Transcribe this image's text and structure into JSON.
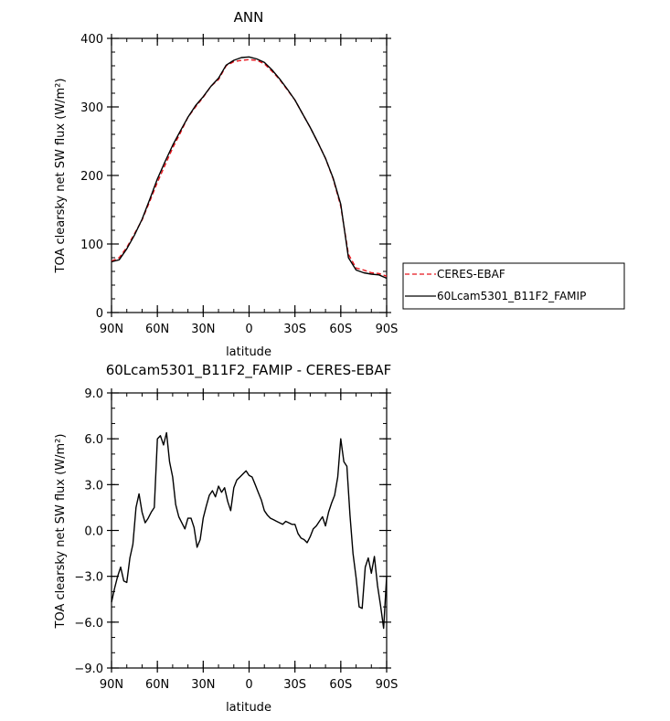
{
  "chart_data": [
    {
      "type": "line",
      "title": "ANN",
      "xlabel": "latitude",
      "ylabel": "TOA clearsky net SW flux (W/m²)",
      "xlim": [
        90,
        -90
      ],
      "ylim": [
        0,
        400
      ],
      "x_ticks": [
        {
          "value": 90,
          "label": "90N"
        },
        {
          "value": 60,
          "label": "60N"
        },
        {
          "value": 30,
          "label": "30N"
        },
        {
          "value": 0,
          "label": "0"
        },
        {
          "value": -30,
          "label": "30S"
        },
        {
          "value": -60,
          "label": "60S"
        },
        {
          "value": -90,
          "label": "90S"
        }
      ],
      "y_ticks": [
        {
          "value": 0,
          "label": "0"
        },
        {
          "value": 100,
          "label": "100"
        },
        {
          "value": 200,
          "label": "200"
        },
        {
          "value": 300,
          "label": "300"
        },
        {
          "value": 400,
          "label": "400"
        }
      ],
      "grid": false,
      "legend": "right",
      "series": [
        {
          "name": "CERES-EBAF",
          "color": "#e8141c",
          "dash": true,
          "x": [
            90,
            85,
            80,
            75,
            70,
            65,
            60,
            55,
            50,
            45,
            40,
            35,
            30,
            25,
            20,
            15,
            10,
            5,
            0,
            -5,
            -10,
            -15,
            -20,
            -25,
            -30,
            -35,
            -40,
            -45,
            -50,
            -55,
            -60,
            -65,
            -70,
            -75,
            -80,
            -85,
            -90
          ],
          "y": [
            75,
            80,
            95,
            115,
            135,
            162,
            190,
            215,
            240,
            262,
            285,
            300,
            314,
            330,
            340,
            360,
            366,
            368,
            369,
            368,
            363,
            352,
            340,
            325,
            310,
            290,
            270,
            248,
            225,
            195,
            155,
            85,
            65,
            62,
            58,
            57,
            53
          ]
        },
        {
          "name": "60Lcam5301_B11F2_FAMIP",
          "color": "#000000",
          "dash": false,
          "x": [
            90,
            85,
            80,
            75,
            70,
            65,
            60,
            55,
            50,
            45,
            40,
            35,
            30,
            25,
            20,
            15,
            10,
            5,
            0,
            -5,
            -10,
            -15,
            -20,
            -25,
            -30,
            -35,
            -40,
            -45,
            -50,
            -55,
            -60,
            -65,
            -70,
            -75,
            -80,
            -85,
            -90
          ],
          "y": [
            74,
            77,
            93,
            113,
            136,
            165,
            195,
            220,
            244,
            265,
            285,
            302,
            315,
            330,
            342,
            361,
            368,
            372,
            373,
            370,
            365,
            354,
            341,
            326,
            310,
            290,
            270,
            248,
            225,
            196,
            158,
            80,
            62,
            58,
            56,
            55,
            50
          ]
        }
      ]
    },
    {
      "type": "line",
      "title": "60Lcam5301_B11F2_FAMIP - CERES-EBAF",
      "xlabel": "latitude",
      "ylabel": "TOA clearsky net SW flux (W/m²)",
      "xlim": [
        90,
        -90
      ],
      "ylim": [
        -9,
        9
      ],
      "x_ticks": [
        {
          "value": 90,
          "label": "90N"
        },
        {
          "value": 60,
          "label": "60N"
        },
        {
          "value": 30,
          "label": "30N"
        },
        {
          "value": 0,
          "label": "0"
        },
        {
          "value": -30,
          "label": "30S"
        },
        {
          "value": -60,
          "label": "60S"
        },
        {
          "value": -90,
          "label": "90S"
        }
      ],
      "y_ticks": [
        {
          "value": -9,
          "label": "−9.0"
        },
        {
          "value": -6,
          "label": "−6.0"
        },
        {
          "value": -3,
          "label": "−3.0"
        },
        {
          "value": 0,
          "label": "0.0"
        },
        {
          "value": 3,
          "label": "3.0"
        },
        {
          "value": 6,
          "label": "6.0"
        },
        {
          "value": 9,
          "label": "9.0"
        }
      ],
      "grid": false,
      "series": [
        {
          "color": "#000000",
          "dash": false,
          "x": [
            90,
            88,
            86,
            84,
            82,
            80,
            78,
            76,
            74,
            72,
            70,
            68,
            66,
            64,
            62,
            60,
            58,
            56,
            54,
            52,
            50,
            48,
            46,
            44,
            42,
            40,
            38,
            36,
            34,
            32,
            30,
            28,
            26,
            24,
            22,
            20,
            18,
            16,
            14,
            12,
            10,
            8,
            6,
            4,
            2,
            0,
            -2,
            -4,
            -6,
            -8,
            -10,
            -12,
            -14,
            -16,
            -18,
            -20,
            -22,
            -24,
            -26,
            -28,
            -30,
            -32,
            -34,
            -36,
            -38,
            -40,
            -42,
            -44,
            -46,
            -48,
            -50,
            -52,
            -54,
            -56,
            -58,
            -60,
            -62,
            -64,
            -66,
            -68,
            -70,
            -72,
            -74,
            -76,
            -78,
            -80,
            -82,
            -84,
            -86,
            -88,
            -90
          ],
          "y": [
            -4.7,
            -3.8,
            -3.0,
            -2.4,
            -3.3,
            -3.4,
            -1.8,
            -0.9,
            1.5,
            2.4,
            1.2,
            0.5,
            0.8,
            1.2,
            1.5,
            6.0,
            6.2,
            5.6,
            6.4,
            4.5,
            3.5,
            1.7,
            0.9,
            0.5,
            0.1,
            0.8,
            0.8,
            0.2,
            -1.1,
            -0.6,
            0.8,
            1.6,
            2.3,
            2.6,
            2.2,
            2.9,
            2.5,
            2.8,
            1.9,
            1.3,
            2.8,
            3.3,
            3.5,
            3.7,
            3.9,
            3.6,
            3.5,
            3.0,
            2.5,
            2.0,
            1.3,
            1.0,
            0.8,
            0.7,
            0.6,
            0.5,
            0.4,
            0.6,
            0.5,
            0.4,
            0.4,
            -0.2,
            -0.5,
            -0.6,
            -0.8,
            -0.4,
            0.1,
            0.3,
            0.6,
            0.9,
            0.3,
            1.2,
            1.8,
            2.3,
            3.5,
            6.0,
            4.5,
            4.2,
            1.0,
            -1.5,
            -3.1,
            -5.0,
            -5.1,
            -2.4,
            -1.8,
            -2.8,
            -1.7,
            -3.6,
            -4.9,
            -6.4,
            -3.0
          ]
        }
      ]
    }
  ]
}
